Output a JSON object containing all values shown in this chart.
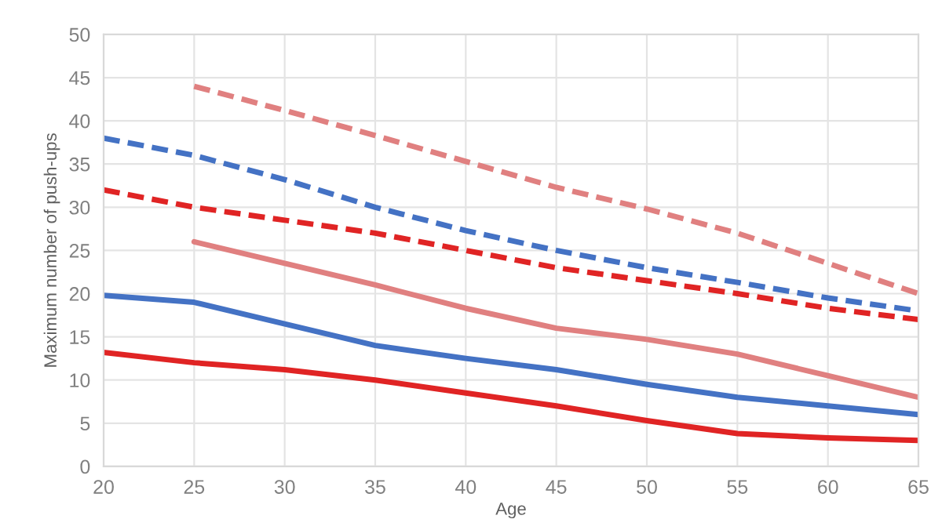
{
  "chart_data": {
    "type": "line",
    "xlabel": "Age",
    "ylabel": "Maximum number of push-ups",
    "xlim": [
      20,
      65
    ],
    "xticks": [
      20,
      25,
      30,
      35,
      40,
      45,
      50,
      55,
      60,
      65
    ],
    "ylim": [
      0,
      50
    ],
    "yticks": [
      0,
      5,
      10,
      15,
      20,
      25,
      30,
      35,
      40,
      45,
      50
    ],
    "grid": true,
    "marker": "none",
    "x": [
      20,
      25,
      30,
      35,
      40,
      45,
      50,
      55,
      60,
      65
    ],
    "series": [
      {
        "color": "#e08080",
        "line_style": "dashed",
        "values": [
          null,
          44,
          41.2,
          38.3,
          35.3,
          32.3,
          29.8,
          27,
          23.5,
          20
        ]
      },
      {
        "color": "#4472c4",
        "line_style": "dashed",
        "values": [
          38,
          36,
          33.2,
          30,
          27.3,
          25,
          23,
          21.3,
          19.5,
          18
        ]
      },
      {
        "color": "#e02424",
        "line_style": "dashed",
        "values": [
          32,
          30,
          28.5,
          27,
          25,
          23,
          21.5,
          20,
          18.3,
          17
        ]
      },
      {
        "color": "#e08080",
        "line_style": "solid",
        "values": [
          null,
          26,
          23.5,
          21,
          18.3,
          16,
          14.7,
          13,
          10.5,
          8
        ]
      },
      {
        "color": "#4472c4",
        "line_style": "solid",
        "values": [
          19.8,
          19,
          16.5,
          14,
          12.5,
          11.2,
          9.5,
          8,
          7,
          6
        ]
      },
      {
        "color": "#e02424",
        "line_style": "solid",
        "values": [
          13.2,
          12,
          11.2,
          10,
          8.5,
          7,
          5.3,
          3.8,
          3.3,
          3
        ]
      }
    ]
  }
}
